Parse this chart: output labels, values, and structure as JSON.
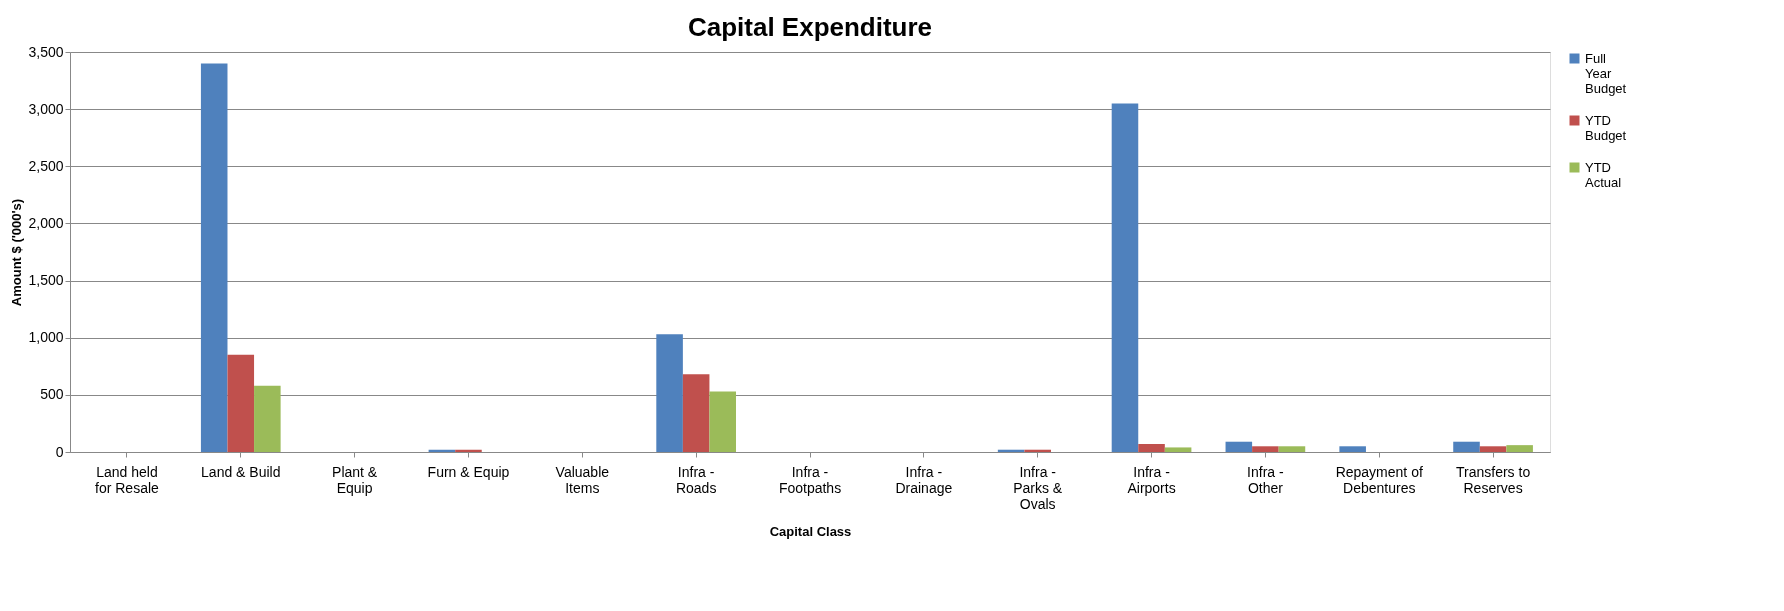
{
  "chart_data": {
    "type": "bar",
    "title": "Capital Expenditure",
    "xlabel": "Capital Class",
    "ylabel": "Amount $ ('000's)",
    "categories": [
      "Land held for Resale",
      "Land & Build",
      "Plant & Equip",
      "Furn & Equip",
      "Valuable Items",
      "Infra - Roads",
      "Infra - Footpaths",
      "Infra - Drainage",
      "Infra - Parks & Ovals",
      "Infra - Airports",
      "Infra - Other",
      "Repayment of Debentures",
      "Transfers to Reserves"
    ],
    "series": [
      {
        "name": "Full Year Budget",
        "color": "#4f81bd",
        "values": [
          0,
          3400,
          0,
          20,
          0,
          1030,
          0,
          0,
          20,
          3050,
          90,
          50,
          90
        ]
      },
      {
        "name": "YTD Budget",
        "color": "#c0504d",
        "values": [
          0,
          850,
          0,
          20,
          0,
          680,
          0,
          0,
          20,
          70,
          50,
          0,
          50
        ]
      },
      {
        "name": "YTD Actual",
        "color": "#9bbb59",
        "values": [
          0,
          580,
          0,
          0,
          0,
          530,
          0,
          0,
          0,
          40,
          50,
          0,
          60
        ]
      }
    ],
    "ylim": [
      0,
      3500
    ],
    "yticks": [
      0,
      500,
      {
        "value": 1000,
        "label": "1,000"
      },
      {
        "value": 1500,
        "label": "1,500"
      },
      {
        "value": 2000,
        "label": "2,000"
      },
      {
        "value": 2500,
        "label": "2,500"
      },
      {
        "value": 3000,
        "label": "3,000"
      },
      {
        "value": 3500,
        "label": "3,500"
      }
    ],
    "grid": "y",
    "legend": "right"
  }
}
